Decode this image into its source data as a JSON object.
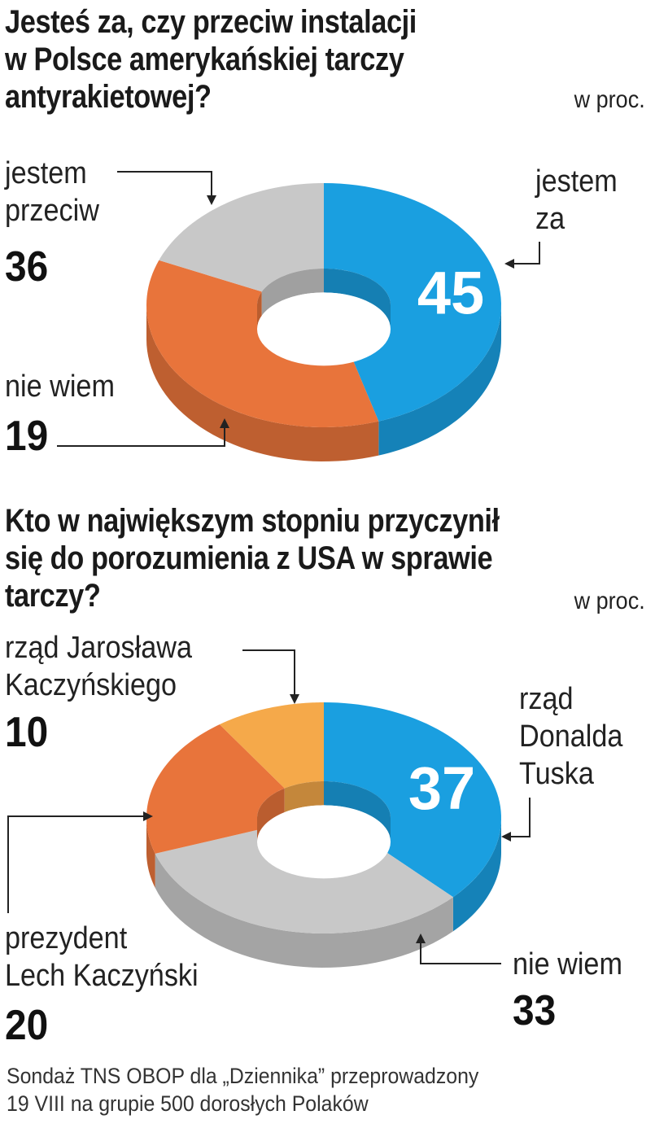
{
  "chart_data": [
    {
      "type": "pie",
      "title": "Jesteś za, czy przeciw instalacji w Polsce amerykańskiej tarczy antyrakietowej?",
      "unit": "w proc.",
      "categories": [
        "jestem za",
        "jestem przeciw",
        "nie wiem"
      ],
      "values": [
        45,
        36,
        19
      ],
      "colors": [
        "#1a9fe0",
        "#e8743b",
        "#c8c8c8"
      ]
    },
    {
      "type": "pie",
      "title": "Kto w największym stopniu przyczynił się do porozumienia z USA w sprawie tarczy?",
      "unit": "w proc.",
      "categories": [
        "rząd Donalda Tuska",
        "nie wiem",
        "prezydent Lech Kaczyński",
        "rząd Jarosława Kaczyńskiego"
      ],
      "values": [
        37,
        33,
        20,
        10
      ],
      "colors": [
        "#1a9fe0",
        "#c8c8c8",
        "#e8743b",
        "#f5a94a"
      ]
    }
  ],
  "labels": {
    "c1_za_line1": "jestem",
    "c1_za_line2": "za",
    "c1_przeciw_line1": "jestem",
    "c1_przeciw_line2": "przeciw",
    "c1_nie_wiem": "nie wiem",
    "c2_tusk_line1": "rząd",
    "c2_tusk_line2": "Donalda",
    "c2_tusk_line3": "Tuska",
    "c2_jk_line1": "rząd Jarosława",
    "c2_jk_line2": "Kaczyńskiego",
    "c2_lk_line1": "prezydent",
    "c2_lk_line2": "Lech Kaczyński",
    "c2_nie_wiem": "nie wiem"
  },
  "title1_lines": [
    "Jesteś za, czy przeciw instalacji",
    "w Polsce amerykańskiej tarczy",
    "antyrakietowej?"
  ],
  "title2_lines": [
    "Kto w największym stopniu przyczynił",
    "się do porozumienia z USA w sprawie",
    "tarczy?"
  ],
  "footer_lines": [
    "Sondaż TNS OBOP dla „Dziennika” przeprowadzony",
    "19 VIII na grupie 500 dorosłych Polaków"
  ]
}
